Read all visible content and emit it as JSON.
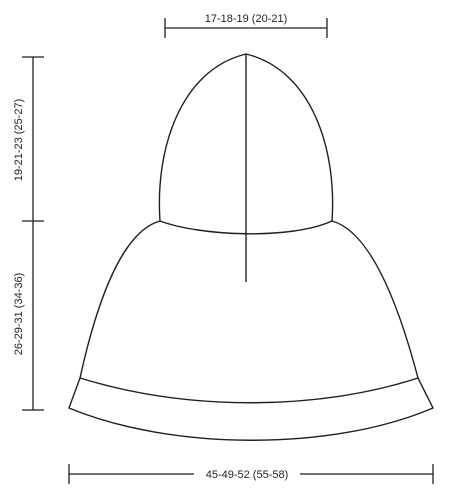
{
  "diagram": {
    "top_width_label": "17-18-19 (20-21)",
    "hood_height_label": "19-21-23 (25-27)",
    "body_height_label": "26-29-31 (34-36)",
    "bottom_width_label": "45-49-52 (55-58)",
    "line_color": "#231f20",
    "background_color": "#ffffff"
  }
}
